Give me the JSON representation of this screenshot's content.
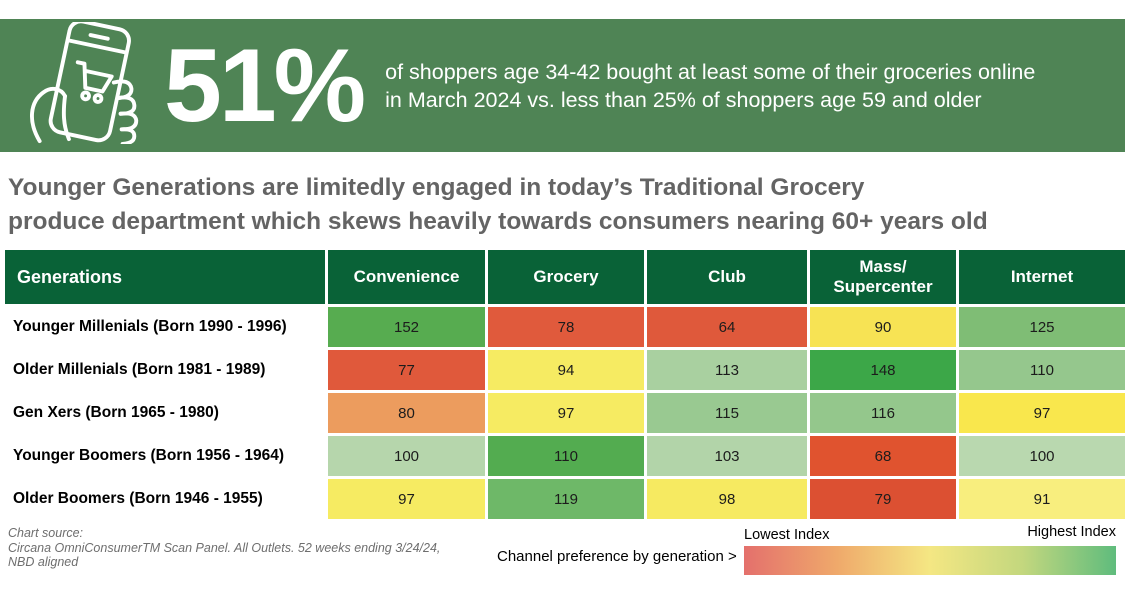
{
  "colors": {
    "banner-bg": "#4F8455",
    "headline-color": "#646464",
    "table-header-bg": "#096237"
  },
  "banner": {
    "icon": "phone-shopping-icon",
    "stat": "51%",
    "description_line1": "of shoppers age 34-42 bought at least some of their groceries online",
    "description_line2": "in March 2024 vs. less than 25% of shoppers age 59 and older"
  },
  "headline": {
    "line1": "Younger Generations are limitedly engaged in today’s Traditional Grocery",
    "line2": "produce department which skews heavily towards consumers nearing 60+ years old"
  },
  "table": {
    "columns": [
      "Generations",
      "Convenience",
      "Grocery",
      "Club",
      "Mass/ Supercenter",
      "Internet"
    ],
    "rows": [
      {
        "label": "Younger Millenials (Born 1990 - 1996)",
        "cells": [
          {
            "v": "152",
            "c": "#57AC50"
          },
          {
            "v": "78",
            "c": "#E05A3C"
          },
          {
            "v": "64",
            "c": "#DF593B"
          },
          {
            "v": "90",
            "c": "#F7E354"
          },
          {
            "v": "125",
            "c": "#7FBD75"
          }
        ]
      },
      {
        "label": "Older Millenials (Born 1981 - 1989)",
        "cells": [
          {
            "v": "77",
            "c": "#E0593B"
          },
          {
            "v": "94",
            "c": "#F6EB62"
          },
          {
            "v": "113",
            "c": "#A9D0A0"
          },
          {
            "v": "148",
            "c": "#3CA748"
          },
          {
            "v": "110",
            "c": "#95C78D"
          }
        ]
      },
      {
        "label": "Gen Xers (Born 1965 - 1980)",
        "cells": [
          {
            "v": "80",
            "c": "#EC9C5E"
          },
          {
            "v": "97",
            "c": "#F6EB62"
          },
          {
            "v": "115",
            "c": "#99C991"
          },
          {
            "v": "116",
            "c": "#94C78C"
          },
          {
            "v": "97",
            "c": "#F9E74D"
          }
        ]
      },
      {
        "label": "Younger Boomers (Born 1956 - 1964)",
        "cells": [
          {
            "v": "100",
            "c": "#B6D6AC"
          },
          {
            "v": "110",
            "c": "#53AC50"
          },
          {
            "v": "103",
            "c": "#B2D4A9"
          },
          {
            "v": "68",
            "c": "#E0532F"
          },
          {
            "v": "100",
            "c": "#B9D8AF"
          }
        ]
      },
      {
        "label": "Older Boomers (Born 1946 - 1955)",
        "cells": [
          {
            "v": "97",
            "c": "#F6EB62"
          },
          {
            "v": "119",
            "c": "#6EB868"
          },
          {
            "v": "98",
            "c": "#F6EA61"
          },
          {
            "v": "79",
            "c": "#DC5032"
          },
          {
            "v": "91",
            "c": "#F8EE7E"
          }
        ]
      }
    ]
  },
  "footer": {
    "source_line1": "Chart source:",
    "source_line2": "Circana OmniConsumerTM Scan Panel. All Outlets. 52 weeks ending 3/24/24,",
    "source_line3": "NBD aligned",
    "legend_caption": "Channel preference by generation >",
    "legend_low": "Lowest Index",
    "legend_high": "Highest Index",
    "legend_gradient": [
      "#E4706C",
      "#EFA96B",
      "#F4E783",
      "#C3D77E",
      "#5FBC7D"
    ]
  },
  "chart_data": {
    "type": "heatmap",
    "title": "Younger Generations are limitedly engaged in today’s Traditional Grocery produce department which skews heavily towards consumers nearing 60+ years old",
    "rows": [
      "Younger Millenials (Born 1990 - 1996)",
      "Older Millenials (Born 1981 - 1989)",
      "Gen Xers (Born 1965 - 1980)",
      "Younger Boomers (Born 1956 - 1964)",
      "Older Boomers (Born 1946 - 1955)"
    ],
    "columns": [
      "Convenience",
      "Grocery",
      "Club",
      "Mass/Supercenter",
      "Internet"
    ],
    "values": [
      [
        152,
        78,
        64,
        90,
        125
      ],
      [
        77,
        94,
        113,
        148,
        110
      ],
      [
        80,
        97,
        115,
        116,
        97
      ],
      [
        100,
        110,
        103,
        68,
        100
      ],
      [
        97,
        119,
        98,
        79,
        91
      ]
    ],
    "legend": {
      "low_label": "Lowest Index",
      "high_label": "Highest Index",
      "note": "color scale red (low) to green (high), scaled per column"
    },
    "callout": {
      "stat": "51%",
      "text": "of shoppers age 34-42 bought at least some of their groceries online in March 2024 vs. less than 25% of shoppers age 59 and older"
    },
    "source": "Chart source: Circana OmniConsumerTM Scan Panel. All Outlets. 52 weeks ending 3/24/24, NBD aligned"
  }
}
